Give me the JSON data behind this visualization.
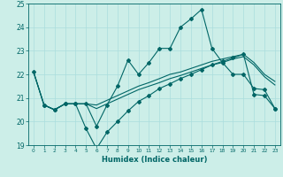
{
  "xlabel": "Humidex (Indice chaleur)",
  "xlim": [
    -0.5,
    23.5
  ],
  "ylim": [
    19,
    25
  ],
  "yticks": [
    19,
    20,
    21,
    22,
    23,
    24,
    25
  ],
  "xticks": [
    0,
    1,
    2,
    3,
    4,
    5,
    6,
    7,
    8,
    9,
    10,
    11,
    12,
    13,
    14,
    15,
    16,
    17,
    18,
    19,
    20,
    21,
    22,
    23
  ],
  "bg_color": "#cceee8",
  "line_color": "#006666",
  "grid_color": "#aadddd",
  "lines": [
    {
      "x": [
        0,
        1,
        2,
        3,
        4,
        5,
        6,
        7,
        8,
        9,
        10,
        11,
        12,
        13,
        14,
        15,
        16,
        17,
        18,
        19,
        20,
        21,
        22,
        23
      ],
      "y": [
        22.1,
        20.7,
        20.5,
        20.75,
        20.75,
        20.75,
        19.8,
        20.7,
        21.5,
        22.6,
        22.0,
        22.5,
        23.1,
        23.1,
        24.0,
        24.35,
        24.75,
        23.1,
        22.5,
        22.0,
        22.0,
        21.4,
        21.35,
        20.55
      ],
      "marker": "D",
      "markersize": 2.0,
      "linewidth": 0.8
    },
    {
      "x": [
        1,
        2,
        3,
        4,
        5,
        6,
        7,
        8,
        9,
        10,
        11,
        12,
        13,
        14,
        15,
        16,
        17,
        18,
        19,
        20,
        21,
        22,
        23
      ],
      "y": [
        20.7,
        20.5,
        20.75,
        20.75,
        19.7,
        18.85,
        19.55,
        20.0,
        20.45,
        20.85,
        21.1,
        21.4,
        21.6,
        21.82,
        22.0,
        22.2,
        22.4,
        22.55,
        22.7,
        22.85,
        21.15,
        21.1,
        20.55
      ],
      "marker": "D",
      "markersize": 2.0,
      "linewidth": 0.8
    },
    {
      "x": [
        0,
        1,
        2,
        3,
        4,
        5,
        6,
        7,
        8,
        9,
        10,
        11,
        12,
        13,
        14,
        15,
        16,
        17,
        18,
        19,
        20,
        21,
        22,
        23
      ],
      "y": [
        22.1,
        20.7,
        20.5,
        20.75,
        20.75,
        20.75,
        20.7,
        20.9,
        21.1,
        21.3,
        21.5,
        21.65,
        21.82,
        22.0,
        22.1,
        22.25,
        22.4,
        22.55,
        22.65,
        22.75,
        22.85,
        22.5,
        22.0,
        21.7
      ],
      "marker": null,
      "markersize": 0,
      "linewidth": 0.8
    },
    {
      "x": [
        0,
        1,
        2,
        3,
        4,
        5,
        6,
        7,
        8,
        9,
        10,
        11,
        12,
        13,
        14,
        15,
        16,
        17,
        18,
        19,
        20,
        21,
        22,
        23
      ],
      "y": [
        22.1,
        20.7,
        20.5,
        20.75,
        20.75,
        20.75,
        20.55,
        20.75,
        20.95,
        21.15,
        21.35,
        21.5,
        21.65,
        21.82,
        21.95,
        22.1,
        22.25,
        22.4,
        22.5,
        22.65,
        22.75,
        22.4,
        21.9,
        21.55
      ],
      "marker": null,
      "markersize": 0,
      "linewidth": 0.8
    }
  ]
}
